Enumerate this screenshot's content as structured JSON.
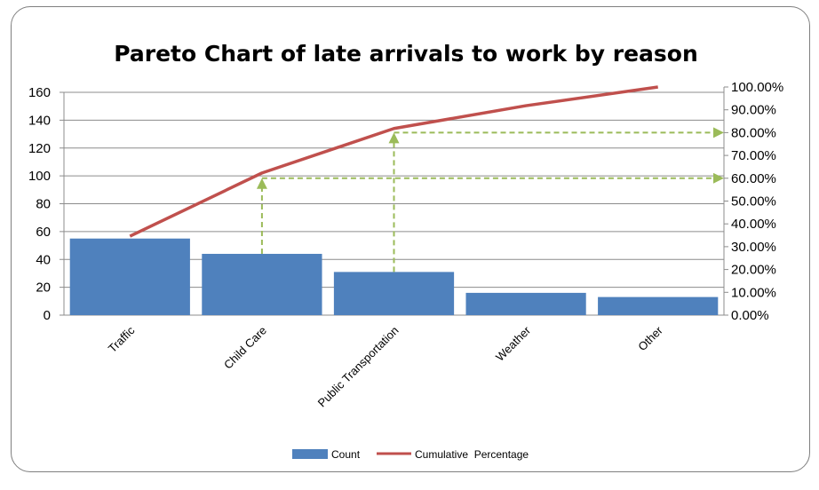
{
  "chart_data": {
    "type": "bar",
    "title": "Pareto Chart of late arrivals to work by reason",
    "categories": [
      "Traffic",
      "Child Care",
      "Public Transportation",
      "Weather",
      "Other"
    ],
    "series": [
      {
        "name": "Count",
        "type": "bar",
        "axis": "left",
        "color": "#4f81bd",
        "values": [
          55,
          44,
          31,
          16,
          13
        ]
      },
      {
        "name": "Cumulative  Percentage",
        "type": "line",
        "axis": "right",
        "color": "#c0504d",
        "values": [
          0.346,
          0.623,
          0.818,
          0.918,
          1.0
        ]
      }
    ],
    "ylim": [
      0,
      160
    ],
    "y_ticks": [
      "0",
      "20",
      "40",
      "60",
      "80",
      "100",
      "120",
      "140",
      "160"
    ],
    "y2lim": [
      0,
      1.0
    ],
    "y2_ticks": [
      "0.00%",
      "10.00%",
      "20.00%",
      "30.00%",
      "40.00%",
      "50.00%",
      "60.00%",
      "70.00%",
      "80.00%",
      "90.00%",
      "100.00%"
    ],
    "grid": true,
    "legend": "bottom",
    "annotations": [
      {
        "type": "dashed-arrow",
        "color": "#9bbb59",
        "from_category": "Child Care",
        "cumulative": 0.6
      },
      {
        "type": "dashed-arrow",
        "color": "#9bbb59",
        "from_category": "Public Transportation",
        "cumulative": 0.8
      }
    ]
  }
}
